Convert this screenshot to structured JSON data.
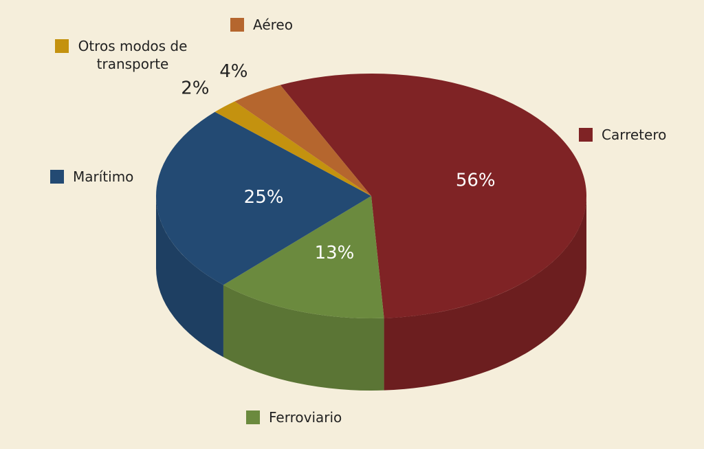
{
  "chart_data": {
    "type": "pie",
    "categories": [
      "Carretero",
      "Ferroviario",
      "Marítimo",
      "Otros modos de transporte",
      "Aéreo"
    ],
    "values": [
      56,
      13,
      25,
      2,
      4
    ],
    "value_labels": [
      "56%",
      "13%",
      "25%",
      "2%",
      "4%"
    ],
    "colors": [
      "#7f2325",
      "#6b8a3e",
      "#234a73",
      "#c4920f",
      "#b5662e"
    ]
  }
}
